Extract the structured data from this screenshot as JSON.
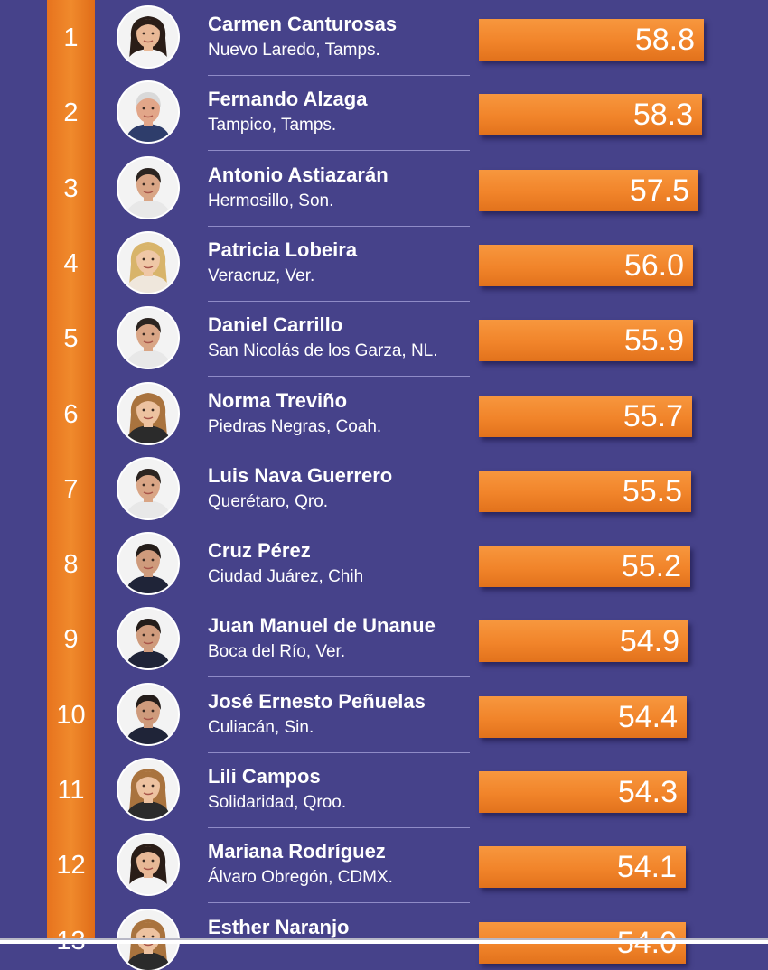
{
  "chart_data": {
    "type": "bar",
    "title": "",
    "xlabel": "",
    "ylabel": "",
    "orientation": "horizontal",
    "colors": {
      "background": "#46428a",
      "bar": "#f1842a",
      "rank_strip": "#ec7d24",
      "text": "#ffffff"
    },
    "xlim": [
      0,
      60
    ],
    "rows": [
      {
        "rank": "1",
        "name": "Carmen Canturosas",
        "city": "Nuevo Laredo, Tamps.",
        "value": "58.8",
        "avatar": "woman-dark-hair"
      },
      {
        "rank": "2",
        "name": "Fernando Alzaga",
        "city": "Tampico, Tamps.",
        "value": "58.3",
        "avatar": "man-gray-hair"
      },
      {
        "rank": "3",
        "name": "Antonio Astiazarán",
        "city": "Hermosillo, Son.",
        "value": "57.5",
        "avatar": "man-dark-hair"
      },
      {
        "rank": "4",
        "name": "Patricia Lobeira",
        "city": "Veracruz, Ver.",
        "value": "56.0",
        "avatar": "woman-blonde"
      },
      {
        "rank": "5",
        "name": "Daniel Carrillo",
        "city": "San Nicolás de los Garza, NL.",
        "value": "55.9",
        "avatar": "man-dark-hair"
      },
      {
        "rank": "6",
        "name": "Norma Treviño",
        "city": "Piedras Negras, Coah.",
        "value": "55.7",
        "avatar": "woman-light-brown-hair"
      },
      {
        "rank": "7",
        "name": "Luis Nava Guerrero",
        "city": "Querétaro, Qro.",
        "value": "55.5",
        "avatar": "man-dark-hair"
      },
      {
        "rank": "8",
        "name": "Cruz Pérez",
        "city": "Ciudad Juárez, Chih",
        "value": "55.2",
        "avatar": "man-dark-suit"
      },
      {
        "rank": "9",
        "name": "Juan Manuel de Unanue",
        "city": "Boca del Río, Ver.",
        "value": "54.9",
        "avatar": "man-dark-suit"
      },
      {
        "rank": "10",
        "name": "José Ernesto Peñuelas",
        "city": "Culiacán, Sin.",
        "value": "54.4",
        "avatar": "man-dark-suit"
      },
      {
        "rank": "11",
        "name": "Lili Campos",
        "city": "Solidaridad, Qroo.",
        "value": "54.3",
        "avatar": "woman-light-brown-hair"
      },
      {
        "rank": "12",
        "name": "Mariana Rodríguez",
        "city": "Álvaro Obregón, CDMX.",
        "value": "54.1",
        "avatar": "woman-dark-hair"
      },
      {
        "rank": "13",
        "name": "Esther Naranjo",
        "city": "",
        "value": "54.0",
        "avatar": "woman-light-brown-hair"
      }
    ]
  }
}
